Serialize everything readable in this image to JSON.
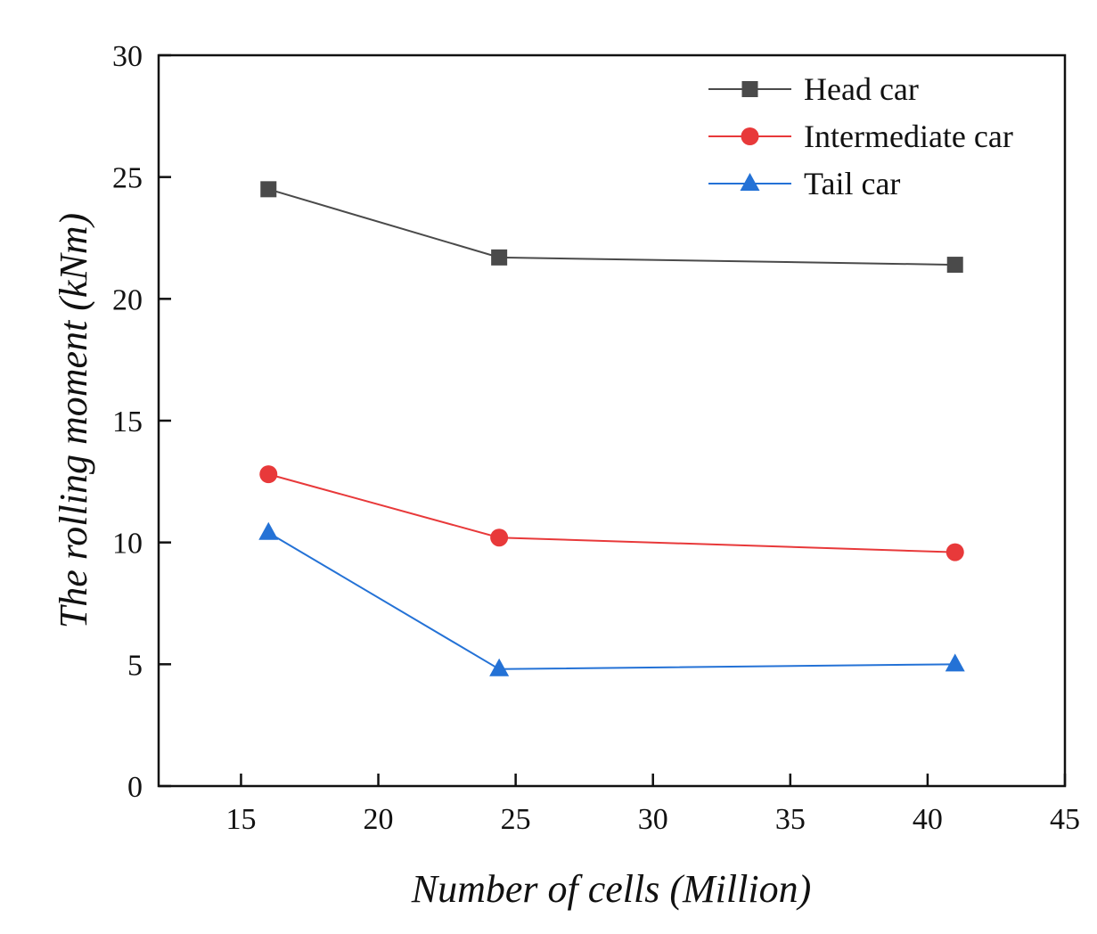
{
  "chart_data": {
    "type": "line",
    "title": "",
    "xlabel": "Number of cells (Million)",
    "ylabel": "The rolling moment (kNm)",
    "xlim": [
      12,
      45
    ],
    "ylim": [
      0,
      30
    ],
    "xticks": [
      15,
      20,
      25,
      30,
      35,
      40,
      45
    ],
    "yticks": [
      0,
      5,
      10,
      15,
      20,
      25,
      30
    ],
    "legend_position": "top-right",
    "x": [
      16,
      24.4,
      41
    ],
    "series": [
      {
        "name": "Head car",
        "marker": "square",
        "color": "#4a4a4a",
        "values": [
          24.5,
          21.7,
          21.4
        ]
      },
      {
        "name": "Intermediate car",
        "marker": "circle",
        "color": "#e8393a",
        "values": [
          12.8,
          10.2,
          9.6
        ]
      },
      {
        "name": "Tail car",
        "marker": "triangle",
        "color": "#2472d6",
        "values": [
          10.4,
          4.8,
          5.0
        ]
      }
    ]
  }
}
